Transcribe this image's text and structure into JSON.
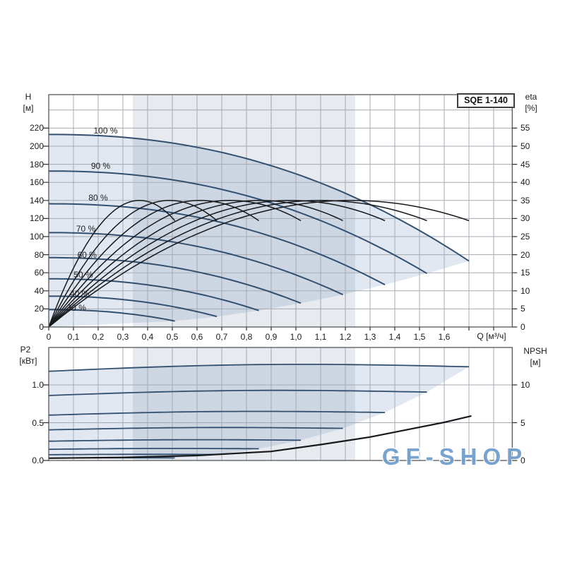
{
  "model_label": "SQE 1-140",
  "watermark_text": "GF-SHOP",
  "axes": {
    "h": "H",
    "h_unit": "[м]",
    "eta": "eta",
    "eta_unit": "[%]",
    "p2": "P2",
    "p2_unit": "[кВт]",
    "npsh": "NPSH",
    "npsh_unit": "[м]",
    "q": "Q [м³/ч]"
  },
  "colors": {
    "curve_blue": "#33506e",
    "curve_black": "#17191c",
    "envelope_fill": "#e1e8f2",
    "band_overlay": "rgba(105,125,152,0.16)",
    "grid": "#a5abb3",
    "border": "#54575b",
    "tick": "#333333",
    "watermark_blue": "#6e9ccc"
  },
  "chart_data": [
    {
      "type": "line",
      "name": "QH and efficiency curves",
      "title": "SQE 1-140",
      "x_axis": {
        "label": "Q [м³/ч]",
        "min": 0,
        "max": 1.875,
        "grid_step": 0.1,
        "tick_labels": [
          "0",
          "0,1",
          "0,2",
          "0,3",
          "0,4",
          "0,5",
          "0,6",
          "0,7",
          "0,8",
          "0,9",
          "1,0",
          "1,1",
          "1,2",
          "1,3",
          "1,4",
          "1,5",
          "1,6"
        ]
      },
      "y_left": {
        "label": "H",
        "unit": "[м]",
        "min": 0,
        "max": 257,
        "grid_step": 20,
        "tick_labels": [
          "0",
          "20",
          "40",
          "60",
          "80",
          "100",
          "120",
          "140",
          "160",
          "180",
          "200",
          "220"
        ]
      },
      "y_right": {
        "label": "eta",
        "unit": "[%]",
        "min": 0,
        "max": 64,
        "tick_labels": [
          "0",
          "5",
          "10",
          "15",
          "20",
          "25",
          "30",
          "35",
          "40",
          "45",
          "50",
          "55"
        ]
      },
      "band": {
        "from": 0.34,
        "to": 1.24
      },
      "series": [
        {
          "label": "100 %",
          "speed_pct": 100,
          "h0": 213.0,
          "q_end": 1.7,
          "h_end": 73.0,
          "eta_peak": 35,
          "eta_end": 29.4,
          "label_pos": [
            0.23,
            217
          ]
        },
        {
          "label": "90 %",
          "speed_pct": 90,
          "h0": 172.5,
          "q_end": 1.53,
          "h_end": 59.2,
          "eta_peak": 35,
          "eta_end": 29.4,
          "label_pos": [
            0.21,
            178
          ]
        },
        {
          "label": "80 %",
          "speed_pct": 80,
          "h0": 136.3,
          "q_end": 1.36,
          "h_end": 46.8,
          "eta_peak": 35,
          "eta_end": 29.4,
          "label_pos": [
            0.2,
            143
          ]
        },
        {
          "label": "70 %",
          "speed_pct": 70,
          "h0": 104.4,
          "q_end": 1.19,
          "h_end": 35.8,
          "eta_peak": 35,
          "eta_end": 29.4,
          "label_pos": [
            0.15,
            109
          ]
        },
        {
          "label": "60 %",
          "speed_pct": 60,
          "h0": 76.7,
          "q_end": 1.02,
          "h_end": 26.3,
          "eta_peak": 35,
          "eta_end": 29.4,
          "label_pos": [
            0.155,
            80
          ]
        },
        {
          "label": "50 %",
          "speed_pct": 50,
          "h0": 53.3,
          "q_end": 0.85,
          "h_end": 18.2,
          "eta_peak": 35,
          "eta_end": 29.4,
          "label_pos": [
            0.14,
            58
          ]
        },
        {
          "label": "40 %",
          "speed_pct": 40,
          "h0": 34.1,
          "q_end": 0.68,
          "h_end": 11.6,
          "eta_peak": 35,
          "eta_end": 29.4,
          "label_pos": [
            0.125,
            37
          ]
        },
        {
          "label": "30 %",
          "speed_pct": 30,
          "h0": 19.2,
          "q_end": 0.51,
          "h_end": 6.6,
          "eta_peak": 35,
          "eta_end": 29.4,
          "label_pos": [
            0.112,
            21
          ]
        }
      ]
    },
    {
      "type": "line",
      "name": "P2 power and NPSH curves",
      "x_axis": {
        "label": "",
        "min": 0,
        "max": 1.875,
        "grid_step": 0.1,
        "tick_labels": []
      },
      "y_left": {
        "label": "P2",
        "unit": "[кВт]",
        "min": 0,
        "max": 1.49,
        "grid_step": 0.5,
        "tick_labels": [
          "0.0",
          "0.5",
          "1.0"
        ]
      },
      "y_right": {
        "label": "NPSH",
        "unit": "[м]",
        "min": 0,
        "max": 14.9,
        "tick_labels": [
          "0",
          "5",
          "10"
        ]
      },
      "band": {
        "from": 0.34,
        "to": 1.24
      },
      "series": [
        {
          "label": "100 %",
          "speed_pct": 100,
          "q_end": 1.7,
          "p2_start": 1.18,
          "p2_end": 1.24
        },
        {
          "label": "90 %",
          "speed_pct": 90,
          "q_end": 1.53,
          "p2_start": 0.86,
          "p2_end": 0.905
        },
        {
          "label": "80 %",
          "speed_pct": 80,
          "q_end": 1.36,
          "p2_start": 0.6,
          "p2_end": 0.635
        },
        {
          "label": "70 %",
          "speed_pct": 70,
          "q_end": 1.19,
          "p2_start": 0.405,
          "p2_end": 0.425
        },
        {
          "label": "60 %",
          "speed_pct": 60,
          "q_end": 1.02,
          "p2_start": 0.255,
          "p2_end": 0.268
        },
        {
          "label": "50 %",
          "speed_pct": 50,
          "q_end": 0.85,
          "p2_start": 0.148,
          "p2_end": 0.155
        },
        {
          "label": "40 %",
          "speed_pct": 40,
          "q_end": 0.68,
          "p2_start": 0.076,
          "p2_end": 0.079
        },
        {
          "label": "30 %",
          "speed_pct": 30,
          "q_end": 0.51,
          "p2_start": 0.032,
          "p2_end": 0.034
        }
      ],
      "npsh_curve": {
        "label": "NPSH",
        "points": [
          [
            0,
            0.3
          ],
          [
            0.3,
            0.4
          ],
          [
            0.6,
            0.65
          ],
          [
            0.9,
            1.2
          ],
          [
            1.1,
            2.1
          ],
          [
            1.3,
            3.1
          ],
          [
            1.5,
            4.4
          ],
          [
            1.6,
            5.05
          ],
          [
            1.71,
            5.9
          ]
        ]
      }
    }
  ]
}
